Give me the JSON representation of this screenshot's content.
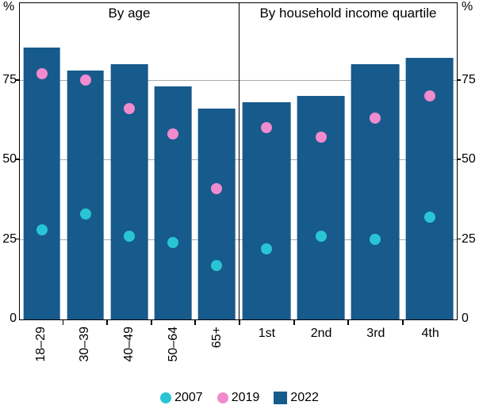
{
  "chart_data": {
    "type": "bar",
    "title": "",
    "y_axis_unit": "%",
    "ylim": [
      0,
      99
    ],
    "yticks": [
      0,
      25,
      50,
      75
    ],
    "gridlines": [
      25,
      50,
      75
    ],
    "grid": true,
    "legend_position": "bottom-center",
    "colors": {
      "bar_2022": "#175A8C",
      "dot_2007": "#29C5D4",
      "dot_2019": "#F08BCD",
      "gridline": "#ABABAB",
      "frame": "#000000"
    },
    "legend": [
      {
        "label": "2007",
        "marker": "circle",
        "color_key": "dot_2007"
      },
      {
        "label": "2019",
        "marker": "circle",
        "color_key": "dot_2019"
      },
      {
        "label": "2022",
        "marker": "square",
        "color_key": "bar_2022"
      }
    ],
    "panels": [
      {
        "title": "By age",
        "categories": [
          "18–29",
          "30–39",
          "40–49",
          "50–64",
          "65+"
        ],
        "xlabel_rotation": "vertical",
        "series": [
          {
            "name": "2022",
            "type": "bar",
            "values": [
              85,
              78,
              80,
              73,
              66
            ]
          },
          {
            "name": "2019",
            "type": "dot",
            "values": [
              77,
              75,
              66,
              58,
              41
            ]
          },
          {
            "name": "2007",
            "type": "dot",
            "values": [
              28,
              33,
              26,
              24,
              17
            ]
          }
        ]
      },
      {
        "title": "By household income quartile",
        "categories": [
          "1st",
          "2nd",
          "3rd",
          "4th"
        ],
        "xlabel_rotation": "horizontal",
        "series": [
          {
            "name": "2022",
            "type": "bar",
            "values": [
              68,
              70,
              80,
              82
            ]
          },
          {
            "name": "2019",
            "type": "dot",
            "values": [
              60,
              57,
              63,
              70
            ]
          },
          {
            "name": "2007",
            "type": "dot",
            "values": [
              22,
              26,
              25,
              32
            ]
          }
        ]
      }
    ]
  }
}
